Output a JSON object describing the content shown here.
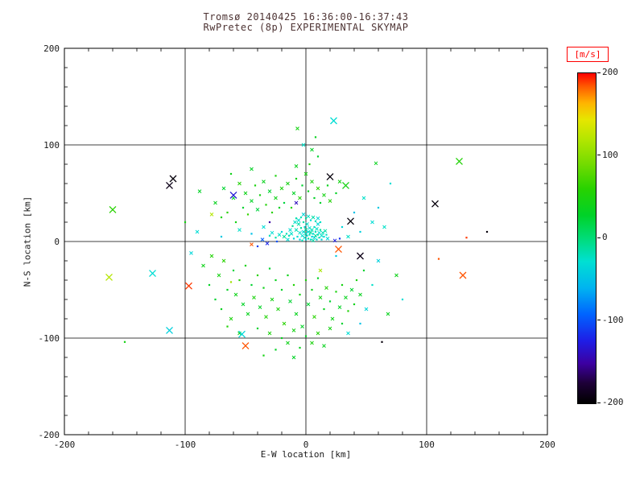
{
  "header": {
    "line1": "Tromsø 20140425 16:36:00-16:37:43",
    "line2": "RwPretec (8p) EXPERIMENTAL SKYMAP"
  },
  "colors": {
    "axis": "#000000",
    "text": "#1a1a1a",
    "title": "#4d3333",
    "background": "#ffffff",
    "colorbar_box": "#ff0000"
  },
  "chart_data": {
    "type": "scatter",
    "title": "Tromsø 20140425 16:36:00-16:37:43",
    "subtitle": "RwPretec (8p) EXPERIMENTAL SKYMAP",
    "xlabel": "E-W location [km]",
    "ylabel": "N-S location [km]",
    "xlim": [
      -200,
      200
    ],
    "ylim": [
      -200,
      200
    ],
    "x_ticks": [
      -200,
      -100,
      0,
      100,
      200
    ],
    "y_ticks": [
      -200,
      -100,
      0,
      100,
      200
    ],
    "grid_values": [
      -100,
      0,
      100
    ],
    "grid": true,
    "legend_position": "none",
    "colorbar": {
      "label": "[m/s]",
      "ticks": [
        200,
        100,
        0,
        -100,
        -200
      ],
      "vmin": -200,
      "vmax": 200
    },
    "colormap": [
      [
        0.0,
        "#000000"
      ],
      [
        0.06,
        "#1d0036"
      ],
      [
        0.12,
        "#3c00a0"
      ],
      [
        0.19,
        "#1e1ee6"
      ],
      [
        0.27,
        "#0064ff"
      ],
      [
        0.35,
        "#00b4f0"
      ],
      [
        0.43,
        "#00e0d2"
      ],
      [
        0.5,
        "#00dc78"
      ],
      [
        0.57,
        "#00d228"
      ],
      [
        0.65,
        "#28d200"
      ],
      [
        0.73,
        "#78dc00"
      ],
      [
        0.8,
        "#b4e600"
      ],
      [
        0.86,
        "#e6e600"
      ],
      [
        0.91,
        "#ffb400"
      ],
      [
        0.96,
        "#ff5a00"
      ],
      [
        1.0,
        "#ff0000"
      ]
    ],
    "point_format": [
      "x_km",
      "y_km",
      "velocity_ms",
      "marker_size_class"
    ],
    "points": [
      [
        -12,
        8,
        -25,
        1
      ],
      [
        -10,
        3,
        -35,
        0
      ],
      [
        -8,
        12,
        -20,
        1
      ],
      [
        -7,
        5,
        -30,
        0
      ],
      [
        -6,
        18,
        -15,
        1
      ],
      [
        -5,
        2,
        -40,
        0
      ],
      [
        -5,
        9,
        -25,
        1
      ],
      [
        -4,
        14,
        -10,
        0
      ],
      [
        -3,
        6,
        -30,
        1
      ],
      [
        -3,
        1,
        -20,
        0
      ],
      [
        -2,
        10,
        -35,
        1
      ],
      [
        -2,
        20,
        -15,
        0
      ],
      [
        -1,
        4,
        -25,
        1
      ],
      [
        -1,
        15,
        -30,
        0
      ],
      [
        0,
        8,
        -20,
        1
      ],
      [
        0,
        2,
        -40,
        0
      ],
      [
        0,
        12,
        -10,
        1
      ],
      [
        1,
        6,
        -30,
        0
      ],
      [
        1,
        18,
        -25,
        1
      ],
      [
        2,
        3,
        -15,
        0
      ],
      [
        2,
        10,
        -35,
        1
      ],
      [
        3,
        7,
        -20,
        0
      ],
      [
        3,
        14,
        -30,
        1
      ],
      [
        4,
        2,
        -25,
        0
      ],
      [
        4,
        9,
        -10,
        1
      ],
      [
        5,
        5,
        -40,
        0
      ],
      [
        5,
        12,
        -20,
        1
      ],
      [
        6,
        8,
        -30,
        0
      ],
      [
        6,
        1,
        -15,
        1
      ],
      [
        7,
        15,
        -25,
        0
      ],
      [
        7,
        4,
        -35,
        1
      ],
      [
        8,
        10,
        -20,
        0
      ],
      [
        8,
        6,
        -10,
        1
      ],
      [
        9,
        2,
        -30,
        0
      ],
      [
        9,
        13,
        -25,
        1
      ],
      [
        10,
        7,
        -15,
        0
      ],
      [
        10,
        18,
        -35,
        1
      ],
      [
        11,
        4,
        -20,
        0
      ],
      [
        11,
        9,
        -30,
        1
      ],
      [
        12,
        12,
        -10,
        0
      ],
      [
        13,
        6,
        -25,
        1
      ],
      [
        13,
        2,
        -40,
        0
      ],
      [
        14,
        9,
        -20,
        1
      ],
      [
        15,
        5,
        -30,
        0
      ],
      [
        16,
        11,
        -15,
        1
      ],
      [
        17,
        7,
        -25,
        0
      ],
      [
        18,
        3,
        -35,
        1
      ],
      [
        -14,
        6,
        -20,
        0
      ],
      [
        -13,
        12,
        -30,
        1
      ],
      [
        -11,
        16,
        -10,
        0
      ],
      [
        -9,
        20,
        -25,
        1
      ],
      [
        -8,
        24,
        -15,
        0
      ],
      [
        -6,
        22,
        -30,
        1
      ],
      [
        -4,
        25,
        -20,
        0
      ],
      [
        -2,
        28,
        -35,
        1
      ],
      [
        0,
        24,
        -10,
        0
      ],
      [
        2,
        26,
        -25,
        1
      ],
      [
        4,
        22,
        -30,
        0
      ],
      [
        6,
        25,
        -15,
        1
      ],
      [
        8,
        21,
        -20,
        0
      ],
      [
        10,
        24,
        -35,
        1
      ],
      [
        12,
        20,
        -25,
        0
      ],
      [
        -15,
        2,
        -30,
        1
      ],
      [
        -16,
        8,
        -20,
        0
      ],
      [
        -18,
        5,
        -10,
        1
      ],
      [
        -20,
        10,
        -35,
        0
      ],
      [
        -22,
        7,
        -25,
        1
      ],
      [
        -25,
        4,
        -15,
        0
      ],
      [
        -28,
        9,
        -30,
        1
      ],
      [
        -30,
        6,
        -20,
        0
      ],
      [
        -75,
        40,
        35,
        1
      ],
      [
        -70,
        25,
        50,
        0
      ],
      [
        -68,
        55,
        25,
        1
      ],
      [
        -65,
        30,
        60,
        0
      ],
      [
        -60,
        45,
        30,
        1
      ],
      [
        -58,
        20,
        45,
        0
      ],
      [
        -55,
        60,
        55,
        1
      ],
      [
        -52,
        35,
        25,
        0
      ],
      [
        -50,
        50,
        40,
        1
      ],
      [
        -48,
        28,
        65,
        0
      ],
      [
        -45,
        42,
        30,
        1
      ],
      [
        -42,
        58,
        50,
        0
      ],
      [
        -40,
        33,
        20,
        1
      ],
      [
        -38,
        48,
        45,
        0
      ],
      [
        -35,
        62,
        35,
        1
      ],
      [
        -33,
        38,
        55,
        0
      ],
      [
        -30,
        52,
        25,
        1
      ],
      [
        -28,
        30,
        60,
        0
      ],
      [
        -25,
        45,
        40,
        1
      ],
      [
        -22,
        35,
        30,
        0
      ],
      [
        -20,
        55,
        50,
        1
      ],
      [
        -18,
        40,
        20,
        0
      ],
      [
        -15,
        60,
        45,
        1
      ],
      [
        -12,
        35,
        60,
        0
      ],
      [
        -10,
        50,
        30,
        1
      ],
      [
        -8,
        65,
        40,
        0
      ],
      [
        -5,
        45,
        55,
        1
      ],
      [
        -3,
        58,
        25,
        0
      ],
      [
        0,
        70,
        45,
        1
      ],
      [
        2,
        52,
        35,
        0
      ],
      [
        5,
        62,
        50,
        1
      ],
      [
        7,
        45,
        30,
        0
      ],
      [
        10,
        55,
        60,
        1
      ],
      [
        12,
        40,
        25,
        0
      ],
      [
        15,
        48,
        45,
        1
      ],
      [
        18,
        58,
        35,
        0
      ],
      [
        20,
        42,
        55,
        1
      ],
      [
        25,
        50,
        30,
        0
      ],
      [
        28,
        62,
        45,
        1
      ],
      [
        -62,
        70,
        40,
        0
      ],
      [
        -45,
        75,
        30,
        1
      ],
      [
        -25,
        68,
        50,
        0
      ],
      [
        -8,
        78,
        35,
        1
      ],
      [
        5,
        95,
        30,
        1
      ],
      [
        -7,
        117,
        45,
        1
      ],
      [
        3,
        80,
        55,
        0
      ],
      [
        10,
        88,
        25,
        0
      ],
      [
        8,
        108,
        35,
        0
      ],
      [
        -2,
        100,
        -25,
        1
      ],
      [
        -85,
        -25,
        40,
        1
      ],
      [
        -80,
        -45,
        30,
        0
      ],
      [
        -78,
        -15,
        55,
        1
      ],
      [
        -75,
        -60,
        25,
        0
      ],
      [
        -72,
        -35,
        45,
        1
      ],
      [
        -70,
        -70,
        35,
        0
      ],
      [
        -68,
        -20,
        60,
        1
      ],
      [
        -65,
        -50,
        30,
        0
      ],
      [
        -62,
        -80,
        50,
        1
      ],
      [
        -60,
        -30,
        20,
        0
      ],
      [
        -58,
        -55,
        40,
        1
      ],
      [
        -55,
        -40,
        55,
        0
      ],
      [
        -52,
        -65,
        30,
        1
      ],
      [
        -50,
        -25,
        45,
        0
      ],
      [
        -48,
        -75,
        35,
        1
      ],
      [
        -45,
        -45,
        25,
        0
      ],
      [
        -43,
        -58,
        50,
        1
      ],
      [
        -40,
        -35,
        60,
        0
      ],
      [
        -38,
        -68,
        30,
        1
      ],
      [
        -35,
        -48,
        40,
        0
      ],
      [
        -33,
        -78,
        55,
        1
      ],
      [
        -30,
        -28,
        25,
        0
      ],
      [
        -28,
        -60,
        45,
        1
      ],
      [
        -25,
        -40,
        35,
        0
      ],
      [
        -23,
        -70,
        50,
        1
      ],
      [
        -20,
        -50,
        30,
        0
      ],
      [
        -18,
        -85,
        60,
        1
      ],
      [
        -15,
        -35,
        40,
        0
      ],
      [
        -13,
        -62,
        25,
        1
      ],
      [
        -10,
        -45,
        55,
        0
      ],
      [
        -8,
        -75,
        35,
        1
      ],
      [
        -5,
        -55,
        45,
        0
      ],
      [
        -3,
        -88,
        30,
        1
      ],
      [
        0,
        -40,
        50,
        0
      ],
      [
        2,
        -65,
        25,
        1
      ],
      [
        5,
        -50,
        40,
        0
      ],
      [
        7,
        -78,
        60,
        1
      ],
      [
        10,
        -38,
        30,
        0
      ],
      [
        12,
        -58,
        45,
        1
      ],
      [
        15,
        -70,
        35,
        0
      ],
      [
        17,
        -48,
        55,
        1
      ],
      [
        20,
        -62,
        25,
        0
      ],
      [
        22,
        -80,
        40,
        1
      ],
      [
        25,
        -52,
        50,
        0
      ],
      [
        28,
        -68,
        30,
        1
      ],
      [
        30,
        -45,
        45,
        0
      ],
      [
        33,
        -58,
        35,
        1
      ],
      [
        35,
        -72,
        55,
        0
      ],
      [
        38,
        -50,
        25,
        1
      ],
      [
        40,
        -65,
        40,
        0
      ],
      [
        -30,
        -95,
        50,
        1
      ],
      [
        -20,
        -100,
        35,
        0
      ],
      [
        -10,
        -92,
        45,
        1
      ],
      [
        0,
        -98,
        30,
        0
      ],
      [
        10,
        -95,
        55,
        1
      ],
      [
        -40,
        -90,
        25,
        0
      ],
      [
        -15,
        -105,
        40,
        1
      ],
      [
        -5,
        -110,
        35,
        0
      ],
      [
        5,
        -105,
        50,
        1
      ],
      [
        -25,
        -112,
        30,
        0
      ],
      [
        20,
        -90,
        45,
        1
      ],
      [
        30,
        -85,
        25,
        0
      ],
      [
        -55,
        -95,
        40,
        1
      ],
      [
        -65,
        -88,
        55,
        0
      ],
      [
        15,
        -108,
        35,
        1
      ],
      [
        -35,
        -118,
        45,
        0
      ],
      [
        -10,
        -120,
        30,
        1
      ],
      [
        42,
        -40,
        50,
        0
      ],
      [
        45,
        -55,
        35,
        1
      ],
      [
        48,
        -30,
        25,
        0
      ],
      [
        -90,
        10,
        -30,
        1
      ],
      [
        -70,
        5,
        -45,
        0
      ],
      [
        -55,
        12,
        -25,
        1
      ],
      [
        -45,
        8,
        -50,
        0
      ],
      [
        -35,
        15,
        -30,
        1
      ],
      [
        60,
        -20,
        -40,
        1
      ],
      [
        55,
        -45,
        -25,
        0
      ],
      [
        50,
        -70,
        -35,
        1
      ],
      [
        45,
        -85,
        -50,
        0
      ],
      [
        35,
        -95,
        -30,
        1
      ],
      [
        25,
        -15,
        -45,
        0
      ],
      [
        35,
        5,
        -25,
        1
      ],
      [
        45,
        10,
        -40,
        0
      ],
      [
        55,
        20,
        -30,
        1
      ],
      [
        40,
        30,
        -50,
        0
      ],
      [
        48,
        45,
        -25,
        1
      ],
      [
        -95,
        -12,
        -35,
        1
      ],
      [
        60,
        35,
        -45,
        0
      ],
      [
        65,
        15,
        -25,
        1
      ],
      [
        30,
        15,
        -35,
        0
      ],
      [
        -40,
        -5,
        -110,
        0
      ],
      [
        -32,
        -2,
        -120,
        1
      ],
      [
        -24,
        0,
        -100,
        0
      ],
      [
        24,
        1,
        -125,
        1
      ],
      [
        28,
        3,
        -115,
        0
      ],
      [
        -36,
        2,
        -95,
        1
      ],
      [
        -110,
        65,
        -195,
        2
      ],
      [
        -113,
        58,
        -190,
        2
      ],
      [
        23,
        125,
        -30,
        2
      ],
      [
        20,
        67,
        -195,
        2
      ],
      [
        33,
        58,
        45,
        2
      ],
      [
        -160,
        33,
        60,
        2
      ],
      [
        -163,
        -37,
        120,
        2
      ],
      [
        -127,
        -33,
        -30,
        2
      ],
      [
        -97,
        -46,
        190,
        2
      ],
      [
        127,
        83,
        55,
        2
      ],
      [
        107,
        39,
        -195,
        2
      ],
      [
        130,
        -35,
        185,
        2
      ],
      [
        37,
        21,
        -195,
        2
      ],
      [
        45,
        -15,
        -190,
        2
      ],
      [
        27,
        -8,
        185,
        2
      ],
      [
        -53,
        -96,
        -35,
        2
      ],
      [
        -113,
        -92,
        -40,
        2
      ],
      [
        -50,
        -108,
        185,
        2
      ],
      [
        -60,
        48,
        -130,
        2
      ],
      [
        -45,
        -3,
        185,
        1
      ],
      [
        133,
        4,
        190,
        0
      ],
      [
        150,
        10,
        -195,
        0
      ],
      [
        110,
        -18,
        185,
        0
      ],
      [
        63,
        -104,
        -195,
        0
      ],
      [
        -150,
        -104,
        45,
        0
      ],
      [
        -8,
        40,
        -140,
        1
      ],
      [
        -78,
        28,
        120,
        1
      ],
      [
        -62,
        -42,
        110,
        0
      ],
      [
        12,
        -30,
        115,
        1
      ],
      [
        -30,
        20,
        -150,
        0
      ],
      [
        58,
        81,
        35,
        1
      ],
      [
        70,
        60,
        -30,
        0
      ],
      [
        -88,
        52,
        30,
        1
      ],
      [
        -100,
        20,
        45,
        0
      ],
      [
        75,
        -35,
        40,
        1
      ],
      [
        80,
        -60,
        -30,
        0
      ],
      [
        68,
        -75,
        35,
        1
      ]
    ]
  }
}
